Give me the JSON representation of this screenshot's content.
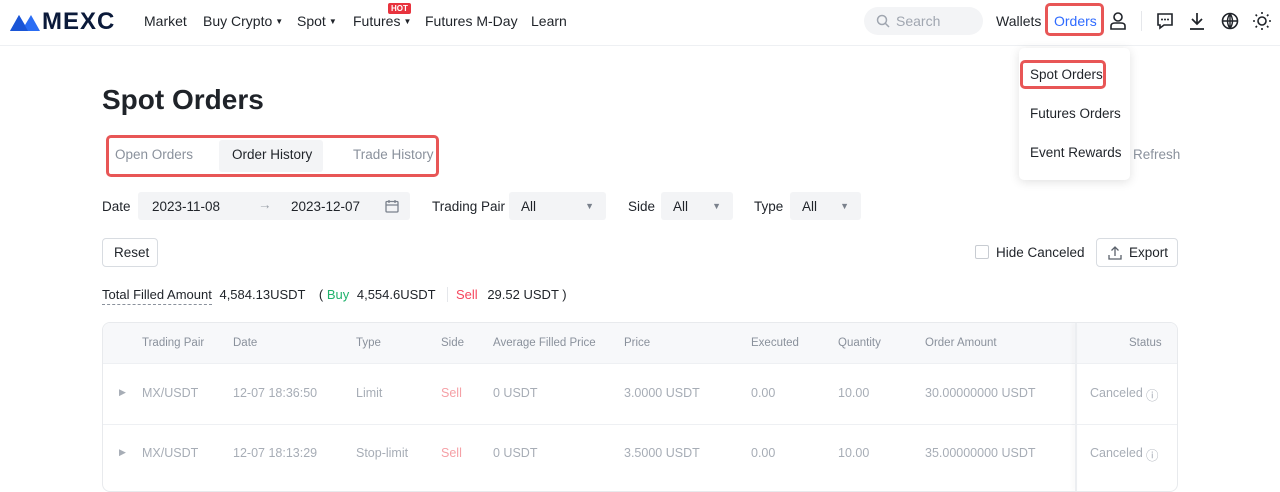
{
  "header": {
    "brand": "MEXC",
    "nav": [
      {
        "label": "Market"
      },
      {
        "label": "Buy Crypto"
      },
      {
        "label": "Spot"
      },
      {
        "label": "Futures",
        "badge": "HOT"
      },
      {
        "label": "Futures M-Day"
      },
      {
        "label": "Learn"
      }
    ],
    "search_placeholder": "Search",
    "wallets": "Wallets",
    "orders": "Orders",
    "icons": [
      "user-icon",
      "chat-icon",
      "download-icon",
      "globe-icon",
      "theme-sun-icon"
    ]
  },
  "orders_menu": [
    "Spot Orders",
    "Futures Orders",
    "Event Rewards"
  ],
  "page": {
    "title": "Spot Orders",
    "tabs": [
      "Open Orders",
      "Order History",
      "Trade History"
    ],
    "active_tab": "Order History",
    "refresh": "Refresh"
  },
  "filters": {
    "date_label": "Date",
    "date_from": "2023-11-08",
    "date_to": "2023-12-07",
    "pair_label": "Trading Pair",
    "pair_value": "All",
    "side_label": "Side",
    "side_value": "All",
    "type_label": "Type",
    "type_value": "All",
    "reset": "Reset",
    "hide_canceled": "Hide Canceled",
    "hide_canceled_checked": false,
    "export": "Export"
  },
  "summary": {
    "label": "Total Filled Amount",
    "total": "4,584.13",
    "unit": "USDT",
    "open": "(",
    "buy_label": "Buy",
    "buy": "4,554.6",
    "sell_label": "Sell",
    "sell": "29.52",
    "close": ")"
  },
  "colors": {
    "accent": "#2f6bff",
    "buy": "#20b26c",
    "sell": "#f6465d",
    "highlight": "#e85656"
  },
  "table": {
    "columns": [
      "Trading Pair",
      "Date",
      "Type",
      "Side",
      "Average Filled Price",
      "Price",
      "Executed",
      "Quantity",
      "Order Amount",
      "Status"
    ],
    "rows": [
      [
        "MX/USDT",
        "12-07 18:36:50",
        "Limit",
        "Sell",
        "0 USDT",
        "3.0000 USDT",
        "0.00",
        "10.00",
        "30.00000000 USDT",
        "Canceled"
      ],
      [
        "MX/USDT",
        "12-07 18:13:29",
        "Stop-limit",
        "Sell",
        "0 USDT",
        "3.5000 USDT",
        "0.00",
        "10.00",
        "35.00000000 USDT",
        "Canceled"
      ]
    ]
  }
}
